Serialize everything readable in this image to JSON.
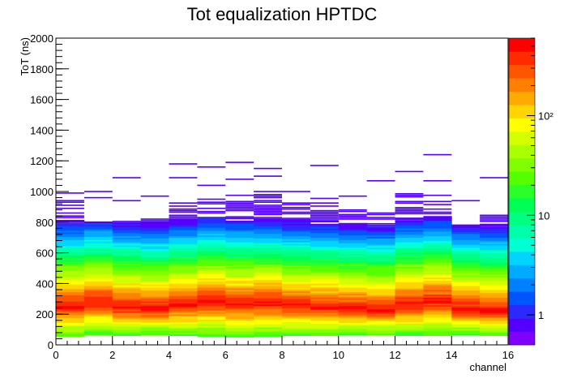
{
  "chart_data": {
    "type": "heatmap",
    "title": "Tot equalization HPTDC",
    "xlabel": "channel",
    "ylabel": "ToT (ns)",
    "xlim": [
      0,
      16
    ],
    "ylim": [
      0,
      2000
    ],
    "x_ticks": [
      "0",
      "2",
      "4",
      "6",
      "8",
      "10",
      "12",
      "14",
      "16"
    ],
    "y_ticks": [
      "0",
      "200",
      "400",
      "600",
      "800",
      "1000",
      "1200",
      "1400",
      "1600",
      "1800",
      "2000"
    ],
    "colorbar": {
      "scale": "log",
      "range": [
        0.5,
        600
      ],
      "tick_labels": [
        {
          "value": 1,
          "label": "1"
        },
        {
          "value": 10,
          "label": "10"
        },
        {
          "value": 100,
          "label": "10²"
        }
      ]
    },
    "grid": false,
    "bin_width_ns": 10,
    "channels": [
      {
        "channel": 0,
        "peak_ns": 250,
        "start_ns": 55,
        "max_ns": 940,
        "outliers_ns": [
          990
        ]
      },
      {
        "channel": 1,
        "peak_ns": 270,
        "start_ns": 65,
        "max_ns": 800,
        "outliers_ns": [
          1000,
          960
        ]
      },
      {
        "channel": 2,
        "peak_ns": 240,
        "start_ns": 60,
        "max_ns": 840,
        "outliers_ns": [
          1090,
          940
        ]
      },
      {
        "channel": 3,
        "peak_ns": 230,
        "start_ns": 65,
        "max_ns": 820,
        "outliers_ns": [
          970
        ]
      },
      {
        "channel": 4,
        "peak_ns": 260,
        "start_ns": 60,
        "max_ns": 960,
        "outliers_ns": [
          1180,
          1090
        ]
      },
      {
        "channel": 5,
        "peak_ns": 280,
        "start_ns": 55,
        "max_ns": 950,
        "outliers_ns": [
          1160,
          1040
        ]
      },
      {
        "channel": 6,
        "peak_ns": 260,
        "start_ns": 50,
        "max_ns": 980,
        "outliers_ns": [
          1190,
          1080
        ]
      },
      {
        "channel": 7,
        "peak_ns": 270,
        "start_ns": 55,
        "max_ns": 1010,
        "outliers_ns": [
          1150,
          1100
        ]
      },
      {
        "channel": 8,
        "peak_ns": 250,
        "start_ns": 60,
        "max_ns": 930,
        "outliers_ns": [
          1000
        ]
      },
      {
        "channel": 9,
        "peak_ns": 240,
        "start_ns": 60,
        "max_ns": 960,
        "outliers_ns": [
          1170
        ]
      },
      {
        "channel": 10,
        "peak_ns": 230,
        "start_ns": 65,
        "max_ns": 880,
        "outliers_ns": [
          970
        ]
      },
      {
        "channel": 11,
        "peak_ns": 220,
        "start_ns": 65,
        "max_ns": 860,
        "outliers_ns": [
          1070
        ]
      },
      {
        "channel": 12,
        "peak_ns": 260,
        "start_ns": 60,
        "max_ns": 1000,
        "outliers_ns": [
          1130
        ]
      },
      {
        "channel": 13,
        "peak_ns": 280,
        "start_ns": 60,
        "max_ns": 980,
        "outliers_ns": [
          1240,
          1070
        ]
      },
      {
        "channel": 14,
        "peak_ns": 230,
        "start_ns": 65,
        "max_ns": 830,
        "outliers_ns": [
          940
        ]
      },
      {
        "channel": 15,
        "peak_ns": 220,
        "start_ns": 60,
        "max_ns": 850,
        "outliers_ns": [
          1090
        ]
      }
    ]
  },
  "palette": [
    "#7f00ff",
    "#5500ff",
    "#2a2aff",
    "#0055ff",
    "#0080ff",
    "#00aaff",
    "#00d4ff",
    "#00ffd4",
    "#00ffaa",
    "#00ff80",
    "#00ff55",
    "#2aff2a",
    "#55ff00",
    "#80ff00",
    "#aaff00",
    "#d4ff00",
    "#ffff00",
    "#ffd400",
    "#ffaa00",
    "#ff8000",
    "#ff5500",
    "#ff2a00",
    "#ff0000"
  ]
}
